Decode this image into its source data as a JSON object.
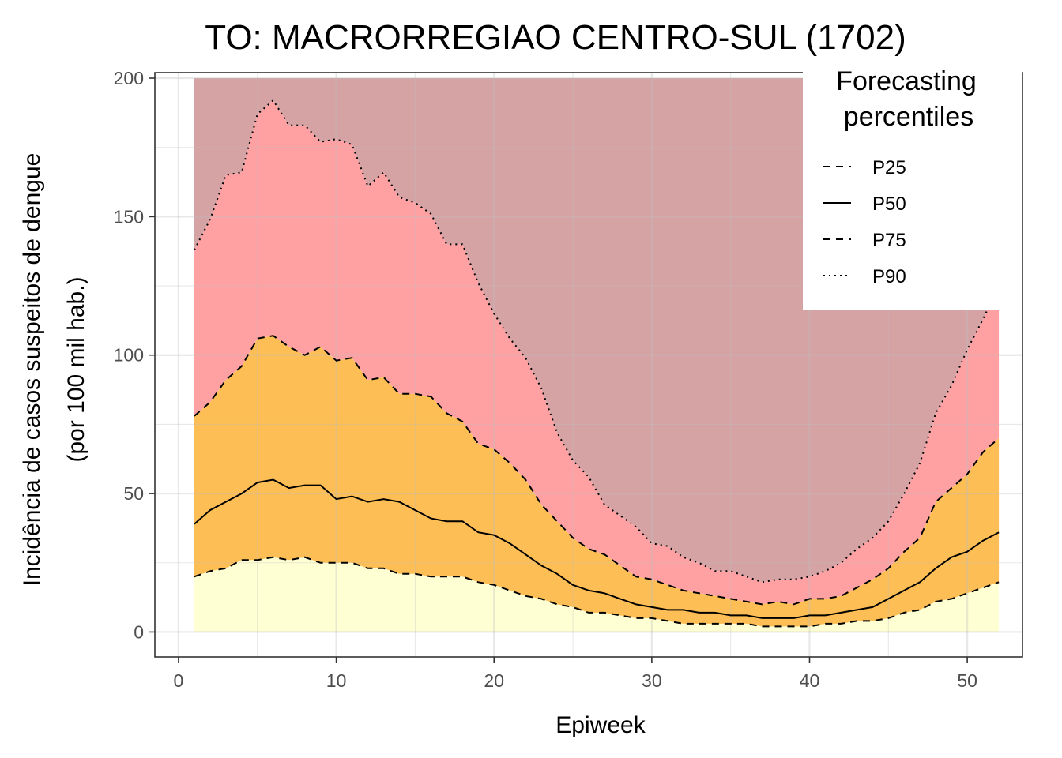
{
  "chart_data": {
    "type": "area",
    "title": "TO: MACRORREGIAO CENTRO-SUL (1702)",
    "xlabel": "Epiweek",
    "ylabel_line1": "Incidência de casos suspeitos de dengue",
    "ylabel_line2": "(por 100 mil hab.)",
    "xlim": [
      -1.5,
      53.5
    ],
    "ylim": [
      -9,
      202
    ],
    "x_ticks": [
      0,
      10,
      20,
      30,
      40,
      50
    ],
    "y_ticks": [
      0,
      50,
      100,
      150,
      200
    ],
    "grid": true,
    "legend_position": "top-right",
    "legend": {
      "title_line1": "Forecasting",
      "title_line2": "percentiles",
      "entries": [
        {
          "label": "P25",
          "dash": "dashed"
        },
        {
          "label": "P50",
          "dash": "solid"
        },
        {
          "label": "P75",
          "dash": "dashed"
        },
        {
          "label": "P90",
          "dash": "dotted"
        }
      ]
    },
    "band_colors": {
      "p0_p25": "#ffffd4",
      "p25_p75": "#fdbf55",
      "p75_p90": "#ffa1a3",
      "p90_top": "#d6a3a5"
    },
    "x": [
      1,
      2,
      3,
      4,
      5,
      6,
      7,
      8,
      9,
      10,
      11,
      12,
      13,
      14,
      15,
      16,
      17,
      18,
      19,
      20,
      21,
      22,
      23,
      24,
      25,
      26,
      27,
      28,
      29,
      30,
      31,
      32,
      33,
      34,
      35,
      36,
      37,
      38,
      39,
      40,
      41,
      42,
      43,
      44,
      45,
      46,
      47,
      48,
      49,
      50,
      51,
      52
    ],
    "series": [
      {
        "name": "P25",
        "values": [
          20,
          22,
          23,
          26,
          26,
          27,
          26,
          27,
          25,
          25,
          25,
          23,
          23,
          21,
          21,
          20,
          20,
          20,
          18,
          17,
          15,
          13,
          12,
          10,
          9,
          7,
          7,
          6,
          5,
          5,
          4,
          3,
          3,
          3,
          3,
          3,
          2,
          2,
          2,
          2,
          3,
          3,
          4,
          4,
          5,
          7,
          8,
          11,
          12,
          14,
          16,
          18
        ]
      },
      {
        "name": "P50",
        "values": [
          39,
          44,
          47,
          50,
          54,
          55,
          52,
          53,
          53,
          48,
          49,
          47,
          48,
          47,
          44,
          41,
          40,
          40,
          36,
          35,
          32,
          28,
          24,
          21,
          17,
          15,
          14,
          12,
          10,
          9,
          8,
          8,
          7,
          7,
          6,
          6,
          5,
          5,
          5,
          6,
          6,
          7,
          8,
          9,
          12,
          15,
          18,
          23,
          27,
          29,
          33,
          36
        ]
      },
      {
        "name": "P75",
        "values": [
          78,
          83,
          91,
          96,
          106,
          107,
          103,
          100,
          103,
          98,
          99,
          91,
          92,
          86,
          86,
          85,
          79,
          76,
          68,
          66,
          61,
          55,
          46,
          40,
          34,
          30,
          28,
          24,
          20,
          19,
          17,
          15,
          14,
          13,
          12,
          11,
          10,
          11,
          10,
          12,
          12,
          13,
          16,
          19,
          23,
          29,
          34,
          47,
          52,
          57,
          65,
          70
        ]
      },
      {
        "name": "P90",
        "values": [
          138,
          149,
          165,
          166,
          187,
          192,
          183,
          183,
          177,
          178,
          176,
          161,
          166,
          157,
          155,
          151,
          140,
          140,
          126,
          115,
          106,
          99,
          88,
          72,
          62,
          56,
          46,
          42,
          38,
          32,
          31,
          27,
          25,
          22,
          22,
          20,
          18,
          19,
          19,
          20,
          22,
          25,
          30,
          34,
          40,
          50,
          61,
          79,
          89,
          102,
          113,
          125
        ]
      }
    ]
  }
}
